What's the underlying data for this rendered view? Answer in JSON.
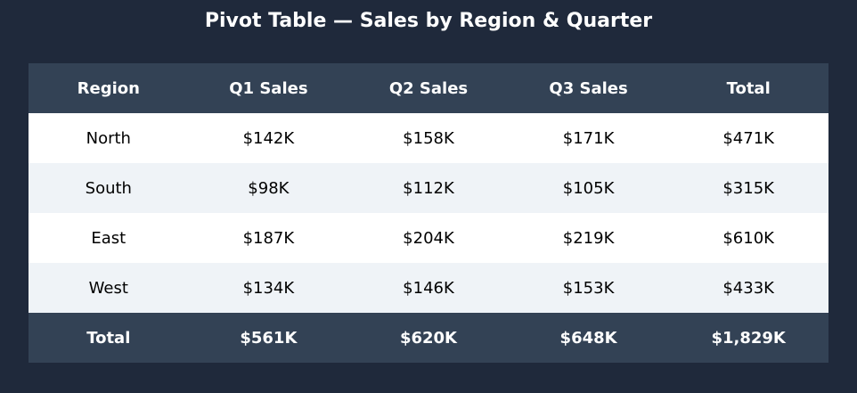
{
  "title": "Pivot Table — Sales by Region & Quarter",
  "colors": {
    "background": "#1f293b",
    "header_bg": "#334255",
    "row_white": "#ffffff",
    "row_tint": "#eff3f7"
  },
  "chart_data": {
    "type": "table",
    "title": "Pivot Table — Sales by Region & Quarter",
    "columns": [
      "Region",
      "Q1 Sales",
      "Q2 Sales",
      "Q3 Sales",
      "Total"
    ],
    "rows": [
      [
        "North",
        "$142K",
        "$158K",
        "$171K",
        "$471K"
      ],
      [
        "South",
        "$98K",
        "$112K",
        "$105K",
        "$315K"
      ],
      [
        "East",
        "$187K",
        "$204K",
        "$219K",
        "$610K"
      ],
      [
        "West",
        "$134K",
        "$146K",
        "$153K",
        "$433K"
      ]
    ],
    "total_row": [
      "Total",
      "$561K",
      "$620K",
      "$648K",
      "$1,829K"
    ]
  }
}
